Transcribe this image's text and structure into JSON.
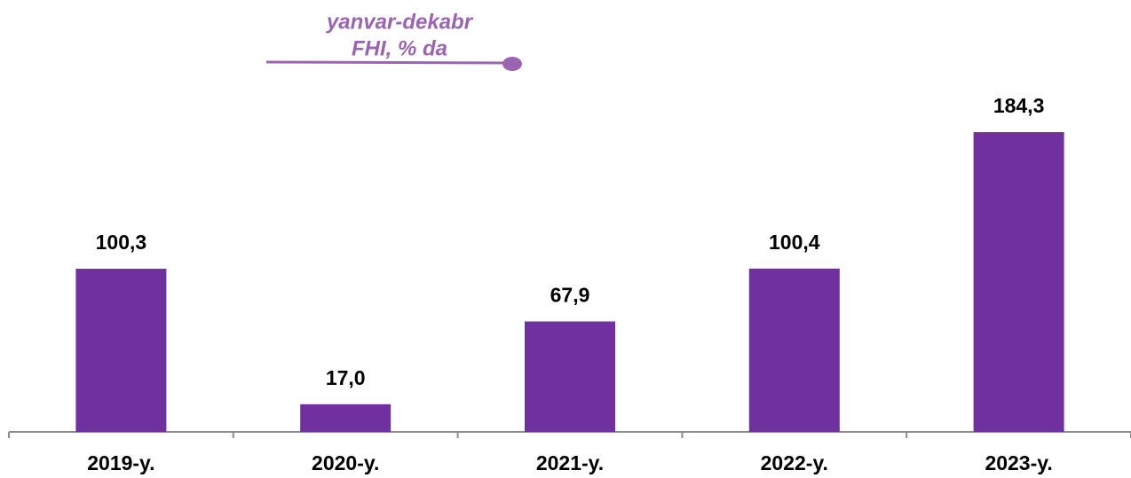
{
  "chart_data": {
    "type": "bar",
    "title": [
      "yanvar-dekabr",
      "FHI, % da"
    ],
    "categories": [
      "2019-y.",
      "2020-y.",
      "2021-y.",
      "2022-y.",
      "2023-y."
    ],
    "values": [
      100.3,
      17.0,
      67.9,
      100.4,
      184.3
    ],
    "value_labels": [
      "100,3",
      "17,0",
      "67,9",
      "100,4",
      "184,3"
    ],
    "color": "#7030a0"
  }
}
